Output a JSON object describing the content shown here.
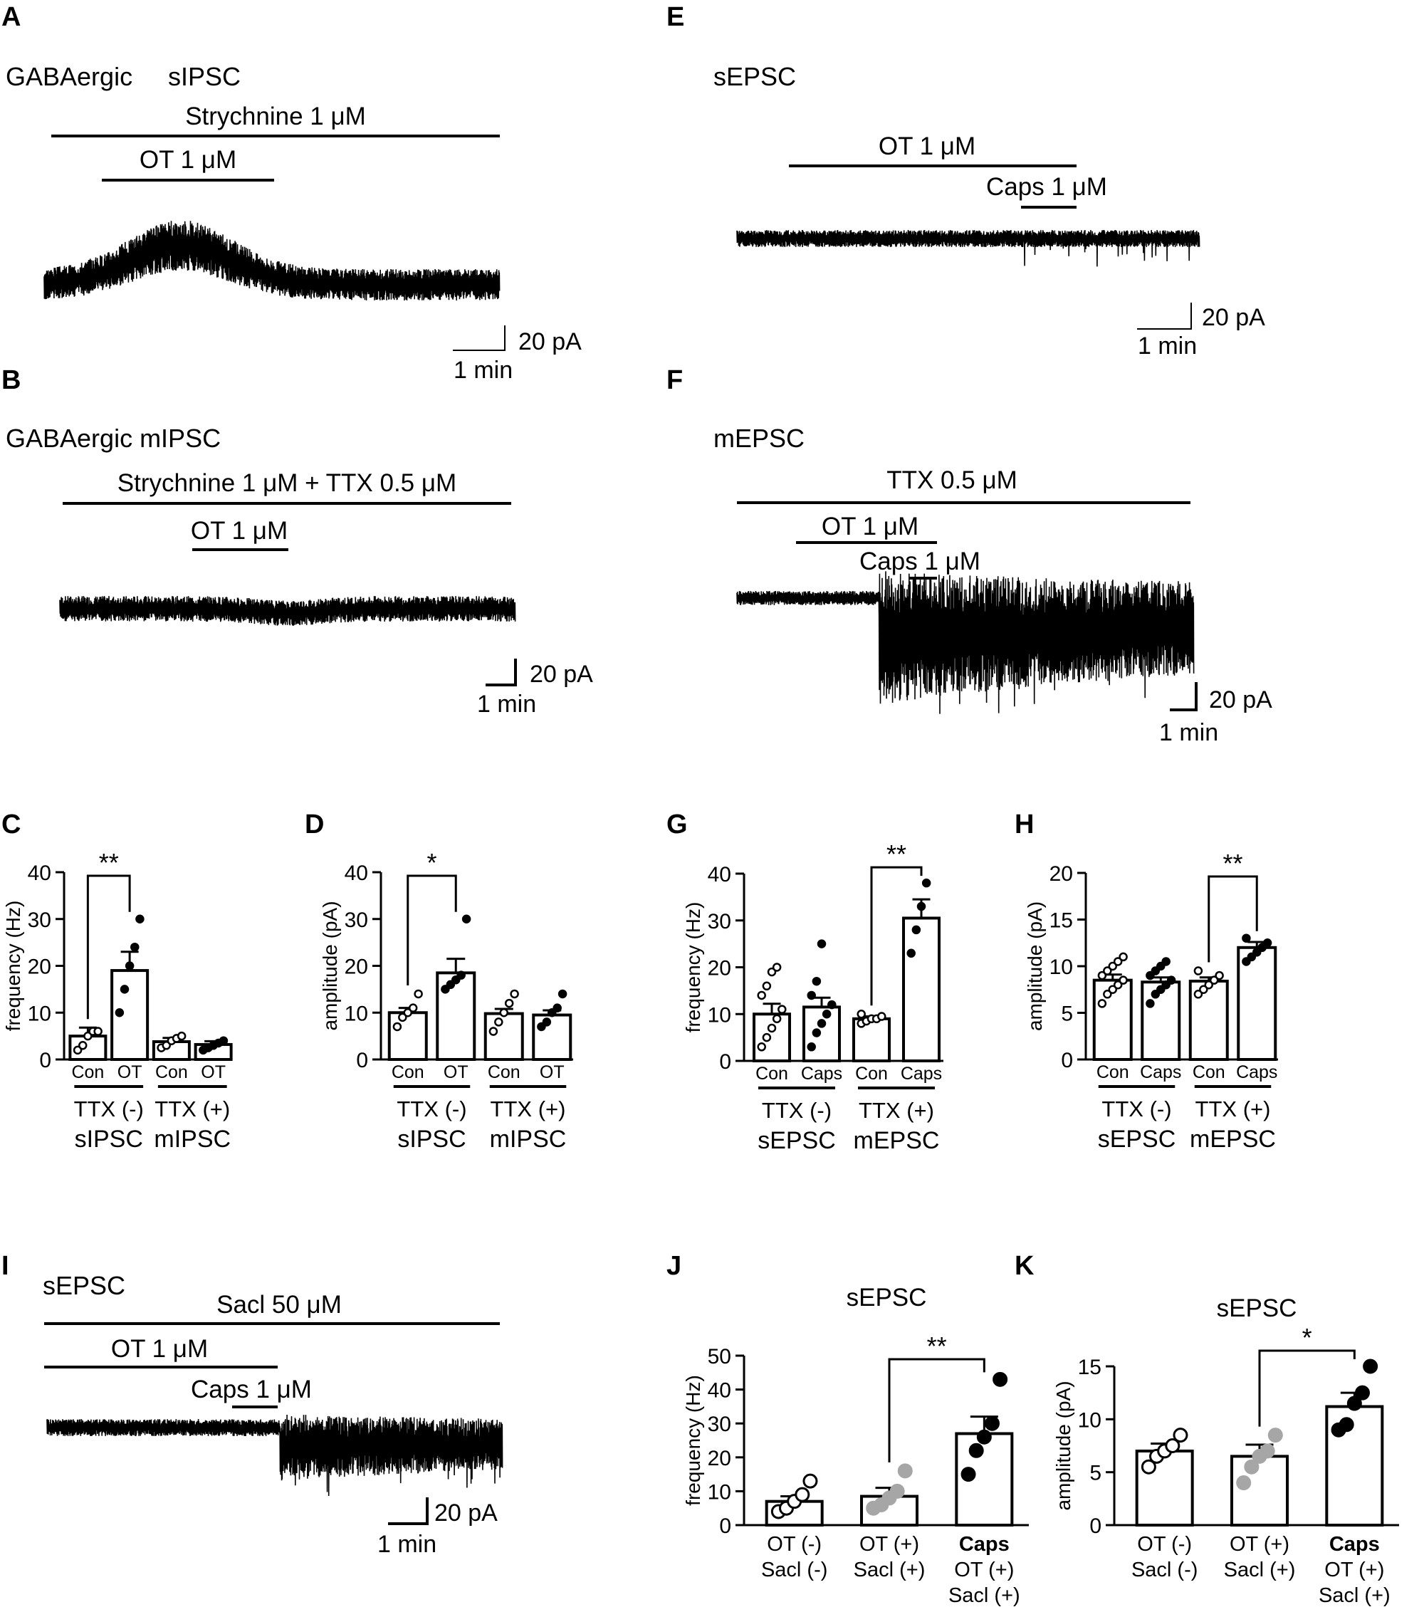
{
  "panels": {
    "A": {
      "letter": "A",
      "label1": "GABAergic",
      "label2": "sIPSC",
      "drugs": [
        "Strychnine 1 μM",
        "OT 1 μM"
      ],
      "scale": {
        "y": "20 pA",
        "x": "1 min"
      }
    },
    "B": {
      "letter": "B",
      "label": "GABAergic mIPSC",
      "drugs": [
        "Strychnine 1 μM + TTX  0.5 μM",
        "OT 1 μM"
      ],
      "scale": {
        "y": "20 pA",
        "x": "1 min"
      }
    },
    "E": {
      "letter": "E",
      "label": "sEPSC",
      "drugs": [
        "OT 1 μM",
        "Caps 1 μM"
      ],
      "scale": {
        "y": "20 pA",
        "x": "1 min"
      }
    },
    "F": {
      "letter": "F",
      "label": "mEPSC",
      "drugs": [
        "TTX 0.5 μM",
        "OT 1 μM",
        "Caps 1 μM"
      ],
      "scale": {
        "y": "20 pA",
        "x": "1 min"
      }
    },
    "I": {
      "letter": "I",
      "label": "sEPSC",
      "drugs": [
        "Sacl  50 μM",
        "OT 1 μM",
        "Caps 1 μM"
      ],
      "scale": {
        "y": "20 pA",
        "x": "1 min"
      }
    }
  },
  "chart_data": [
    {
      "panel": "C",
      "type": "bar",
      "ylabel": "frequency (Hz)",
      "ylim": [
        0,
        40
      ],
      "yticks": [
        0,
        10,
        20,
        30,
        40
      ],
      "categories": [
        "Con",
        "OT",
        "Con",
        "OT"
      ],
      "values": [
        5,
        19,
        3.8,
        3.2
      ],
      "sem": [
        1.8,
        4,
        0.8,
        0.7
      ],
      "points": [
        [
          2,
          3,
          5,
          6,
          6
        ],
        [
          10,
          15,
          20,
          24,
          30
        ],
        [
          2.5,
          3,
          4,
          4.5,
          5
        ],
        [
          2,
          2.5,
          3,
          3.5,
          4
        ]
      ],
      "groups": [
        {
          "label": "TTX (-)",
          "name": "sIPSC"
        },
        {
          "label": "TTX (+)",
          "name": "mIPSC"
        }
      ],
      "significance": [
        {
          "from": 0,
          "to": 1,
          "label": "**"
        }
      ]
    },
    {
      "panel": "D",
      "type": "bar",
      "ylabel": "amplitude (pA)",
      "ylim": [
        0,
        40
      ],
      "yticks": [
        0,
        10,
        20,
        30,
        40
      ],
      "categories": [
        "Con",
        "OT",
        "Con",
        "OT"
      ],
      "values": [
        10,
        18.5,
        9.8,
        9.5
      ],
      "sem": [
        1,
        3,
        1,
        1
      ],
      "points": [
        [
          7,
          9,
          10,
          11,
          14
        ],
        [
          15,
          16,
          17,
          18,
          30
        ],
        [
          6,
          8,
          10,
          12,
          14
        ],
        [
          7,
          8,
          10,
          11,
          14
        ]
      ],
      "groups": [
        {
          "label": "TTX (-)",
          "name": "sIPSC"
        },
        {
          "label": "TTX (+)",
          "name": "mIPSC"
        }
      ],
      "significance": [
        {
          "from": 0,
          "to": 1,
          "label": "*"
        }
      ]
    },
    {
      "panel": "G",
      "type": "bar",
      "ylabel": "frequency (Hz)",
      "ylim": [
        0,
        40
      ],
      "yticks": [
        0,
        10,
        20,
        30,
        40
      ],
      "categories": [
        "Con",
        "Caps",
        "Con",
        "Caps"
      ],
      "values": [
        10,
        11.5,
        9,
        30.5
      ],
      "sem": [
        2.2,
        2,
        0.5,
        4
      ],
      "points": [
        [
          3,
          5,
          7,
          9,
          11,
          14,
          16,
          19,
          20
        ],
        [
          3,
          6,
          8,
          10,
          12,
          14,
          17,
          25
        ],
        [
          8,
          8.5,
          9,
          9,
          9.5,
          10
        ],
        [
          23,
          28,
          33,
          38
        ]
      ],
      "groups": [
        {
          "label": "TTX (-)",
          "name": "sEPSC"
        },
        {
          "label": "TTX (+)",
          "name": "mEPSC"
        }
      ],
      "significance": [
        {
          "from": 2,
          "to": 3,
          "label": "**"
        }
      ]
    },
    {
      "panel": "H",
      "type": "bar",
      "ylabel": "amplitude (pA)",
      "ylim": [
        0,
        20
      ],
      "yticks": [
        0,
        5,
        10,
        15,
        20
      ],
      "categories": [
        "Con",
        "Caps",
        "Con",
        "Caps"
      ],
      "values": [
        8.5,
        8.3,
        8.4,
        12
      ],
      "sem": [
        0.6,
        0.5,
        0.4,
        0.6
      ],
      "points": [
        [
          6,
          7,
          7.5,
          8,
          8.5,
          9,
          9.5,
          10,
          10.5,
          11
        ],
        [
          6,
          7,
          7.5,
          8,
          8.5,
          9,
          9.5,
          10,
          10.5
        ],
        [
          7,
          7.5,
          8,
          8.5,
          9,
          9.5
        ],
        [
          10.5,
          11,
          11.5,
          12,
          12.5,
          13
        ]
      ],
      "groups": [
        {
          "label": "TTX (-)",
          "name": "sEPSC"
        },
        {
          "label": "TTX (+)",
          "name": "mEPSC"
        }
      ],
      "significance": [
        {
          "from": 2,
          "to": 3,
          "label": "**"
        }
      ]
    },
    {
      "panel": "J",
      "type": "bar",
      "title": "sEPSC",
      "ylabel": "frequency (Hz)",
      "ylim": [
        0,
        50
      ],
      "yticks": [
        0,
        10,
        20,
        30,
        40,
        50
      ],
      "categories": [
        [
          "OT (-)",
          "Sacl (-)"
        ],
        [
          "OT (+)",
          "Sacl (+)"
        ],
        [
          "Caps",
          "OT (+)",
          "Sacl (+)"
        ]
      ],
      "values": [
        7,
        8.5,
        27
      ],
      "sem": [
        1.5,
        2.5,
        5
      ],
      "points": [
        [
          4,
          5,
          7,
          9,
          13
        ],
        [
          5,
          6,
          8,
          10,
          16
        ],
        [
          15,
          22,
          26,
          30,
          43
        ]
      ],
      "point_colors": [
        "#ffffff",
        "#a6a6a6",
        "#000000"
      ],
      "significance": [
        {
          "from": 1,
          "to": 2,
          "label": "**"
        }
      ]
    },
    {
      "panel": "K",
      "type": "bar",
      "title": "sEPSC",
      "ylabel": "amplitude (pA)",
      "ylim": [
        0,
        15
      ],
      "yticks": [
        0,
        5,
        10,
        15
      ],
      "categories": [
        [
          "OT (-)",
          "Sacl (-)"
        ],
        [
          "OT (+)",
          "Sacl (+)"
        ],
        [
          "Caps",
          "OT (+)",
          "Sacl (+)"
        ]
      ],
      "values": [
        7,
        6.5,
        11.2
      ],
      "sem": [
        0.7,
        1.1,
        1.3
      ],
      "points": [
        [
          5.5,
          6.5,
          7,
          7.5,
          8.5
        ],
        [
          4,
          5.5,
          6.5,
          7,
          8.5
        ],
        [
          9,
          9.5,
          11.5,
          12.5,
          15
        ]
      ],
      "point_colors": [
        "#ffffff",
        "#a6a6a6",
        "#000000"
      ],
      "significance": [
        {
          "from": 1,
          "to": 2,
          "label": "*"
        }
      ]
    }
  ]
}
